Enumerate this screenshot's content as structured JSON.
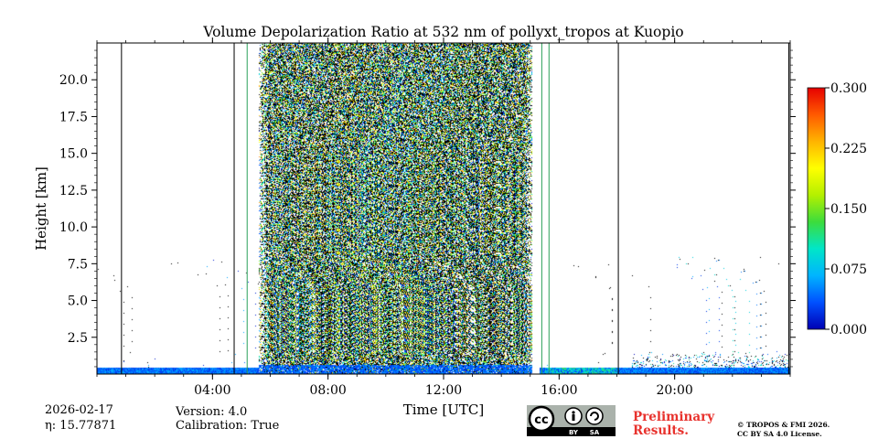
{
  "chart_data": {
    "type": "heatmap",
    "title": "Volume Depolarization Ratio at 532 nm of pollyxt_tropos at Kuopio",
    "xlabel": "Time [UTC]",
    "ylabel": "Height [km]",
    "xlim_hours": [
      0,
      24
    ],
    "ylim_km": [
      0,
      22.5
    ],
    "x_ticks": [
      {
        "hour": 4,
        "label": "04:00"
      },
      {
        "hour": 8,
        "label": "08:00"
      },
      {
        "hour": 12,
        "label": "12:00"
      },
      {
        "hour": 16,
        "label": "16:00"
      },
      {
        "hour": 20,
        "label": "20:00"
      }
    ],
    "y_ticks": [
      {
        "km": 2.5,
        "label": "2.5"
      },
      {
        "km": 5.0,
        "label": "5.0"
      },
      {
        "km": 7.5,
        "label": "7.5"
      },
      {
        "km": 10.0,
        "label": "10.0"
      },
      {
        "km": 12.5,
        "label": "12.5"
      },
      {
        "km": 15.0,
        "label": "15.0"
      },
      {
        "km": 17.5,
        "label": "17.5"
      },
      {
        "km": 20.0,
        "label": "20.0"
      }
    ],
    "colorbar": {
      "min": 0.0,
      "max": 0.3,
      "ticks": [
        {
          "value": 0.0,
          "label": "0.000"
        },
        {
          "value": 0.075,
          "label": "0.075"
        },
        {
          "value": 0.15,
          "label": "0.150"
        },
        {
          "value": 0.225,
          "label": "0.225"
        },
        {
          "value": 0.3,
          "label": "0.300"
        }
      ],
      "colormap": [
        "#0000b4",
        "#0050ff",
        "#00b4ff",
        "#00e6c8",
        "#3cdc3c",
        "#b4f000",
        "#ffff00",
        "#ffb400",
        "#ff5a00",
        "#e60000"
      ]
    },
    "noise_periods_hours": [
      [
        5.6,
        15.1
      ]
    ],
    "data_gaps_hours": [
      [
        15.05,
        15.3
      ]
    ],
    "profile_lines": [
      {
        "hour": 0.85,
        "color": "#000000"
      },
      {
        "hour": 4.75,
        "color": "#000000"
      },
      {
        "hour": 5.2,
        "color": "#2ca05a"
      },
      {
        "hour": 15.4,
        "color": "#2ca05a"
      },
      {
        "hour": 15.65,
        "color": "#2ca05a"
      },
      {
        "hour": 18.05,
        "color": "#000000"
      },
      {
        "hour": 23.95,
        "color": "#000000"
      }
    ],
    "boundary_layer": {
      "base_km": 0.0,
      "top_km": 0.45,
      "value_range": [
        0.02,
        0.1
      ]
    }
  },
  "footer": {
    "date": "2026-02-17",
    "eta": "η: 15.77871",
    "version": "Version: 4.0",
    "calibration": "Calibration: True",
    "preliminary_line1": "Preliminary",
    "preliminary_line2": "Results.",
    "copyright_line1": "© TROPOS & FMI 2026.",
    "copyright_line2": "CC BY SA 4.0 License.",
    "badge_cc": "cc",
    "badge_by": "BY",
    "badge_sa": "SA"
  }
}
